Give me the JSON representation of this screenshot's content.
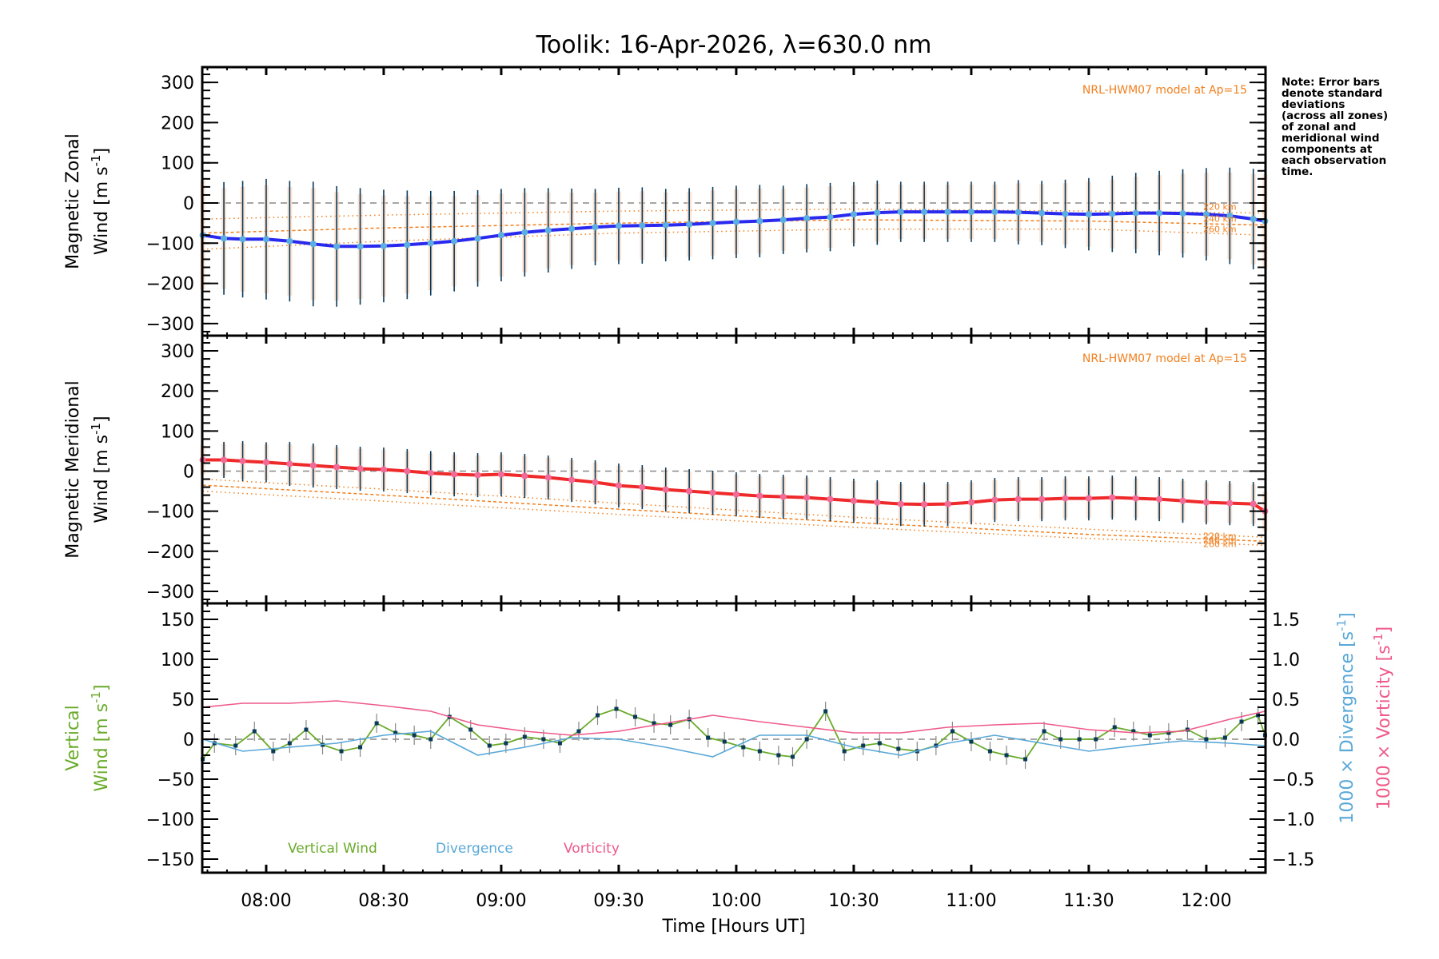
{
  "chart_data": [
    {
      "type": "line",
      "panel": "zonal",
      "title": "Toolik: 16-Apr-2026, λ=630.0 nm",
      "ylabel_line1": "Magnetic Zonal",
      "ylabel_line2": "Wind [m s",
      "ylabel_sup": "-1",
      "ylabel_close": "]",
      "ylim": [
        -330,
        338
      ],
      "yticks": [
        -300,
        -200,
        -100,
        0,
        100,
        200,
        300
      ],
      "model_label": "NRL-HWM07 model at Ap=15",
      "model_alt_labels": [
        "220 km",
        "240 km",
        "260 km"
      ],
      "series": [
        {
          "name": "Magnetic Zonal Wind",
          "color": "#2a2aee",
          "x": [
            7.73,
            7.82,
            7.9,
            8.0,
            8.1,
            8.2,
            8.3,
            8.4,
            8.5,
            8.6,
            8.7,
            8.8,
            8.9,
            9.0,
            9.1,
            9.2,
            9.3,
            9.4,
            9.5,
            9.6,
            9.7,
            9.8,
            9.9,
            10.0,
            10.1,
            10.2,
            10.3,
            10.4,
            10.5,
            10.6,
            10.7,
            10.8,
            10.9,
            11.0,
            11.1,
            11.2,
            11.3,
            11.4,
            11.5,
            11.6,
            11.7,
            11.8,
            11.9,
            12.0,
            12.1,
            12.2,
            12.25
          ],
          "y": [
            -80,
            -88,
            -90,
            -90,
            -95,
            -102,
            -108,
            -108,
            -107,
            -104,
            -100,
            -95,
            -88,
            -80,
            -73,
            -68,
            -64,
            -60,
            -57,
            -56,
            -55,
            -53,
            -50,
            -47,
            -45,
            -42,
            -38,
            -35,
            -28,
            -24,
            -22,
            -22,
            -22,
            -22,
            -22,
            -23,
            -25,
            -27,
            -28,
            -27,
            -25,
            -25,
            -26,
            -28,
            -32,
            -40,
            -45
          ],
          "err": [
            150,
            140,
            145,
            150,
            150,
            155,
            150,
            145,
            140,
            135,
            130,
            125,
            120,
            115,
            110,
            105,
            100,
            95,
            95,
            95,
            90,
            90,
            90,
            90,
            90,
            85,
            85,
            85,
            80,
            80,
            75,
            75,
            75,
            75,
            75,
            80,
            80,
            85,
            90,
            95,
            100,
            105,
            110,
            115,
            120,
            125,
            130
          ]
        },
        {
          "name": "HWM07 220 km",
          "color": "#f08020",
          "style": "dotted",
          "x": [
            7.73,
            8.5,
            9.5,
            10.5,
            11.5,
            12.25
          ],
          "y": [
            -40,
            -30,
            -20,
            -15,
            -20,
            -25
          ]
        },
        {
          "name": "HWM07 240 km",
          "color": "#f08020",
          "style": "dashed",
          "x": [
            7.73,
            8.5,
            9.5,
            10.5,
            11.5,
            12.25
          ],
          "y": [
            -75,
            -62,
            -50,
            -42,
            -45,
            -55
          ]
        },
        {
          "name": "HWM07 260 km",
          "color": "#f08020",
          "style": "dotted",
          "x": [
            7.73,
            8.5,
            9.5,
            10.5,
            11.5,
            12.25
          ],
          "y": [
            -115,
            -95,
            -75,
            -65,
            -65,
            -80
          ]
        }
      ]
    },
    {
      "type": "line",
      "panel": "meridional",
      "ylabel_line1": "Magnetic Meridional",
      "ylabel_line2": "Wind [m s",
      "ylabel_sup": "-1",
      "ylabel_close": "]",
      "ylim": [
        -330,
        338
      ],
      "yticks": [
        -300,
        -200,
        -100,
        0,
        100,
        200,
        300
      ],
      "model_label": "NRL-HWM07 model at Ap=15",
      "model_alt_labels": [
        "220 km",
        "240 km",
        "260 km"
      ],
      "series": [
        {
          "name": "Magnetic Meridional Wind",
          "color": "#ee2a2a",
          "x": [
            7.73,
            7.82,
            7.9,
            8.0,
            8.1,
            8.2,
            8.3,
            8.4,
            8.5,
            8.6,
            8.7,
            8.8,
            8.9,
            9.0,
            9.1,
            9.2,
            9.3,
            9.4,
            9.5,
            9.6,
            9.7,
            9.8,
            9.9,
            10.0,
            10.1,
            10.2,
            10.3,
            10.4,
            10.5,
            10.6,
            10.7,
            10.8,
            10.9,
            11.0,
            11.1,
            11.2,
            11.3,
            11.4,
            11.5,
            11.6,
            11.7,
            11.8,
            11.9,
            12.0,
            12.1,
            12.2,
            12.25
          ],
          "y": [
            28,
            28,
            25,
            22,
            18,
            14,
            10,
            6,
            4,
            0,
            -5,
            -8,
            -10,
            -8,
            -12,
            -16,
            -22,
            -28,
            -36,
            -40,
            -46,
            -50,
            -54,
            -58,
            -62,
            -64,
            -66,
            -70,
            -74,
            -78,
            -82,
            -83,
            -82,
            -78,
            -72,
            -70,
            -70,
            -68,
            -68,
            -66,
            -68,
            -70,
            -74,
            -78,
            -80,
            -82,
            -100
          ],
          "err": [
            40,
            45,
            50,
            50,
            55,
            55,
            55,
            55,
            55,
            55,
            55,
            55,
            55,
            55,
            55,
            55,
            55,
            55,
            55,
            55,
            55,
            55,
            55,
            55,
            55,
            55,
            55,
            55,
            55,
            55,
            55,
            55,
            55,
            55,
            55,
            55,
            55,
            55,
            55,
            55,
            55,
            55,
            55,
            55,
            55,
            55,
            55
          ]
        },
        {
          "name": "HWM07 220 km",
          "color": "#f08020",
          "style": "dotted",
          "x": [
            7.73,
            8.5,
            9.5,
            10.5,
            11.5,
            12.25
          ],
          "y": [
            -20,
            -45,
            -80,
            -115,
            -145,
            -165
          ]
        },
        {
          "name": "HWM07 240 km",
          "color": "#f08020",
          "style": "dashed",
          "x": [
            7.73,
            8.5,
            9.5,
            10.5,
            11.5,
            12.25
          ],
          "y": [
            -35,
            -60,
            -95,
            -128,
            -158,
            -175
          ]
        },
        {
          "name": "HWM07 260 km",
          "color": "#f08020",
          "style": "dotted",
          "x": [
            7.73,
            8.5,
            9.5,
            10.5,
            11.5,
            12.25
          ],
          "y": [
            -50,
            -75,
            -108,
            -140,
            -168,
            -185
          ]
        }
      ]
    },
    {
      "type": "line",
      "panel": "vertical",
      "ylabel_line1": "Vertical",
      "ylabel_line2": "Wind [m s",
      "ylabel_sup": "-1",
      "ylabel_close": "]",
      "ylim": [
        -167,
        170
      ],
      "yticks": [
        -150,
        -100,
        -50,
        0,
        50,
        100,
        150
      ],
      "y2lim": [
        -1.67,
        1.7
      ],
      "y2ticks": [
        -1.5,
        -1.0,
        -0.5,
        0.0,
        0.5,
        1.0,
        1.5
      ],
      "y2label_div": "1000 × Divergence [s",
      "y2label_vort": "1000 × Vorticity [s",
      "y2label_sup": "-1",
      "y2label_close": "]",
      "xlabel": "Time [Hours UT]",
      "xticks": [
        "08:00",
        "08:30",
        "09:00",
        "09:30",
        "10:00",
        "10:30",
        "11:00",
        "11:30",
        "12:00"
      ],
      "xtick_values": [
        8.0,
        8.5,
        9.0,
        9.5,
        10.0,
        10.5,
        11.0,
        11.5,
        12.0
      ],
      "xlim": [
        7.728,
        12.252
      ],
      "legend": [
        "Vertical Wind",
        "Divergence",
        "Vorticity"
      ],
      "legend_placement": "bottom-left",
      "series": [
        {
          "name": "Vertical Wind",
          "color": "#6aaa2a",
          "axis": "left",
          "x": [
            7.73,
            7.78,
            7.87,
            7.95,
            8.03,
            8.1,
            8.17,
            8.24,
            8.32,
            8.4,
            8.47,
            8.55,
            8.63,
            8.7,
            8.78,
            8.87,
            8.95,
            9.02,
            9.1,
            9.18,
            9.25,
            9.33,
            9.41,
            9.49,
            9.57,
            9.65,
            9.72,
            9.8,
            9.88,
            9.95,
            10.03,
            10.1,
            10.18,
            10.24,
            10.3,
            10.38,
            10.46,
            10.54,
            10.61,
            10.69,
            10.77,
            10.85,
            10.92,
            11.0,
            11.08,
            11.15,
            11.23,
            11.31,
            11.38,
            11.46,
            11.53,
            11.61,
            11.69,
            11.76,
            11.84,
            11.92,
            12.0,
            12.08,
            12.15,
            12.22,
            12.25
          ],
          "y": [
            -25,
            -5,
            -8,
            10,
            -15,
            -5,
            12,
            -7,
            -15,
            -10,
            20,
            8,
            5,
            0,
            28,
            12,
            -8,
            -5,
            3,
            0,
            -5,
            10,
            30,
            38,
            28,
            20,
            18,
            25,
            2,
            -3,
            -10,
            -15,
            -20,
            -22,
            0,
            35,
            -15,
            -8,
            -5,
            -12,
            -15,
            -8,
            10,
            -3,
            -15,
            -20,
            -25,
            10,
            0,
            0,
            0,
            15,
            10,
            5,
            8,
            12,
            0,
            2,
            22,
            30,
            5
          ]
        },
        {
          "name": "Divergence",
          "color": "#5aa8d8",
          "axis": "right",
          "x": [
            7.73,
            7.9,
            8.1,
            8.3,
            8.5,
            8.7,
            8.9,
            9.1,
            9.3,
            9.5,
            9.7,
            9.9,
            10.1,
            10.3,
            10.5,
            10.7,
            10.9,
            11.1,
            11.3,
            11.5,
            11.7,
            11.9,
            12.1,
            12.25
          ],
          "y": [
            0.0,
            -0.15,
            -0.1,
            -0.05,
            0.05,
            0.1,
            -0.2,
            -0.1,
            0.02,
            0.0,
            -0.1,
            -0.22,
            0.05,
            0.05,
            -0.1,
            -0.2,
            -0.05,
            0.05,
            -0.05,
            -0.15,
            -0.08,
            -0.02,
            -0.05,
            -0.08
          ]
        },
        {
          "name": "Vorticity",
          "color": "#ee5a8a",
          "axis": "right",
          "x": [
            7.73,
            7.9,
            8.1,
            8.3,
            8.5,
            8.7,
            8.9,
            9.1,
            9.3,
            9.5,
            9.7,
            9.9,
            10.1,
            10.3,
            10.5,
            10.7,
            10.9,
            11.1,
            11.3,
            11.5,
            11.7,
            11.9,
            12.1,
            12.25
          ],
          "y": [
            0.4,
            0.45,
            0.45,
            0.48,
            0.42,
            0.35,
            0.18,
            0.1,
            0.05,
            0.1,
            0.2,
            0.3,
            0.22,
            0.15,
            0.08,
            0.08,
            0.15,
            0.18,
            0.2,
            0.12,
            0.08,
            0.1,
            0.25,
            0.35
          ]
        }
      ]
    }
  ],
  "note": "Note: Error bars\ndenote standard\ndeviations\n(across all zones)\nof zonal and\nmeridional wind\ncomponents at\neach observation\ntime."
}
